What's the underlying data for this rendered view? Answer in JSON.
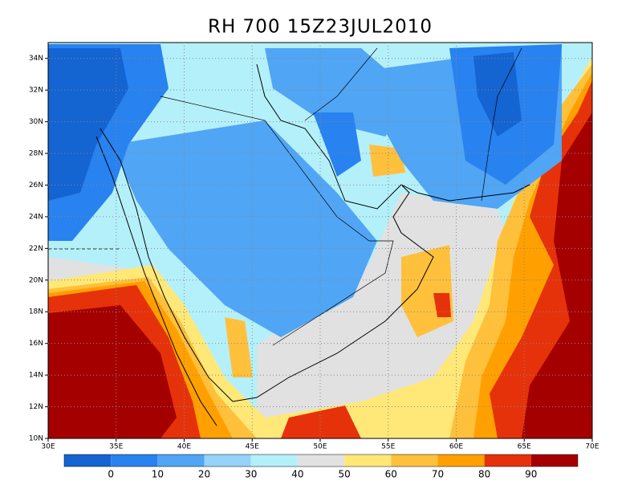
{
  "title": "RH 700 15Z23JUL2010",
  "map": {
    "lonlim": [
      30,
      70
    ],
    "latlim": [
      10,
      35
    ],
    "lonticks": [
      {
        "value": 30,
        "label": "30E"
      },
      {
        "value": 35,
        "label": "35E"
      },
      {
        "value": 40,
        "label": "40E"
      },
      {
        "value": 45,
        "label": "45E"
      },
      {
        "value": 50,
        "label": "50E"
      },
      {
        "value": 55,
        "label": "55E"
      },
      {
        "value": 60,
        "label": "60E"
      },
      {
        "value": 65,
        "label": "65E"
      },
      {
        "value": 70,
        "label": "70E"
      }
    ],
    "latticks": [
      {
        "value": 10,
        "label": "10N"
      },
      {
        "value": 12,
        "label": "12N"
      },
      {
        "value": 14,
        "label": "14N"
      },
      {
        "value": 16,
        "label": "16N"
      },
      {
        "value": 18,
        "label": "18N"
      },
      {
        "value": 20,
        "label": "20N"
      },
      {
        "value": 22,
        "label": "22N"
      },
      {
        "value": 24,
        "label": "24N"
      },
      {
        "value": 26,
        "label": "26N"
      },
      {
        "value": 28,
        "label": "28N"
      },
      {
        "value": 30,
        "label": "30N"
      },
      {
        "value": 32,
        "label": "32N"
      },
      {
        "value": 34,
        "label": "34N"
      }
    ],
    "grid": true
  },
  "colorbar": {
    "levels": [
      0,
      10,
      20,
      30,
      40,
      50,
      60,
      70,
      80,
      90
    ],
    "colors": [
      "#1464d2",
      "#2882f0",
      "#50a5f5",
      "#96d2fa",
      "#b4f0fa",
      "#e1e1e1",
      "#ffe878",
      "#ffc03c",
      "#ffa000",
      "#e6320a",
      "#a50000"
    ]
  }
}
